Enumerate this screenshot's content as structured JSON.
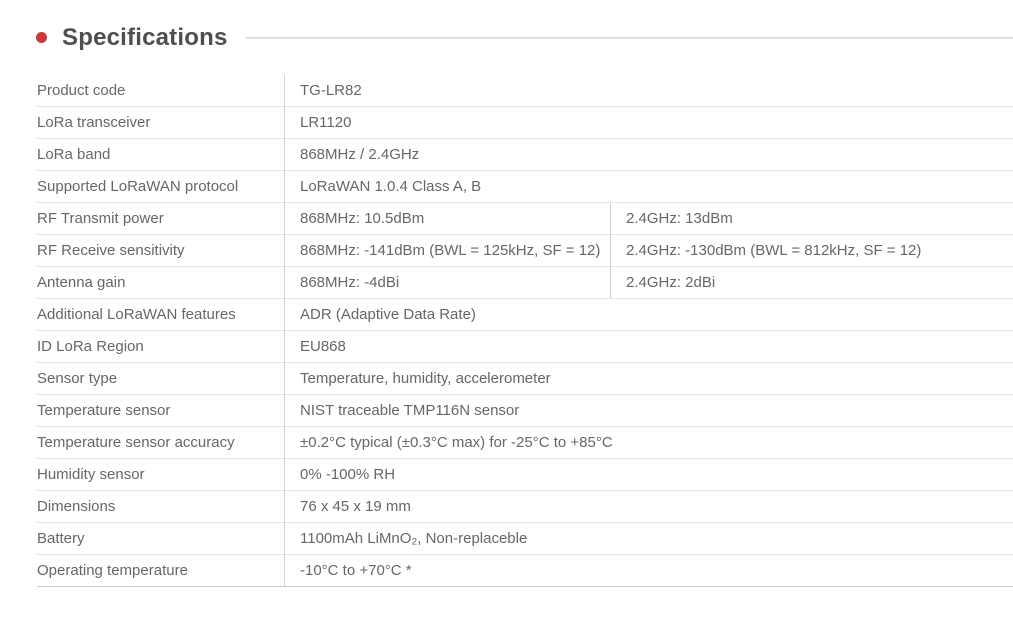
{
  "header": {
    "title": "Specifications",
    "bullet_color": "#c93a3a"
  },
  "table": {
    "rows": [
      {
        "label": "Product code",
        "values": [
          "TG-LR82"
        ]
      },
      {
        "label": "LoRa transceiver",
        "values": [
          "LR1120"
        ]
      },
      {
        "label": "LoRa band",
        "values": [
          "868MHz / 2.4GHz"
        ]
      },
      {
        "label": "Supported LoRaWAN protocol",
        "values": [
          "LoRaWAN 1.0.4 Class A, B"
        ]
      },
      {
        "label": "RF Transmit power",
        "values": [
          "868MHz: 10.5dBm",
          "2.4GHz: 13dBm"
        ]
      },
      {
        "label": "RF Receive sensitivity",
        "values": [
          "868MHz: -141dBm (BWL = 125kHz, SF = 12)",
          "2.4GHz: -130dBm (BWL = 812kHz, SF = 12)"
        ]
      },
      {
        "label": "Antenna gain",
        "values": [
          "868MHz: -4dBi",
          "2.4GHz: 2dBi"
        ]
      },
      {
        "label": "Additional LoRaWAN features",
        "values": [
          "ADR (Adaptive Data Rate)"
        ]
      },
      {
        "label": "ID LoRa Region",
        "values": [
          "EU868"
        ]
      },
      {
        "label": "Sensor type",
        "values": [
          "Temperature, humidity, accelerometer"
        ]
      },
      {
        "label": "Temperature sensor",
        "values": [
          "NIST traceable TMP116N sensor"
        ]
      },
      {
        "label": "Temperature sensor accuracy",
        "values": [
          "±0.2°C typical (±0.3°C max) for -25°C to +85°C"
        ]
      },
      {
        "label": "Humidity sensor",
        "values": [
          "0% -100% RH"
        ]
      },
      {
        "label": "Dimensions",
        "values": [
          "76 x 45 x 19 mm"
        ]
      },
      {
        "label": "Battery",
        "values": [
          "1100mAh LiMnO₂, Non-replaceble"
        ]
      },
      {
        "label": "Operating temperature",
        "values": [
          "-10°C to +70°C *"
        ]
      }
    ]
  }
}
